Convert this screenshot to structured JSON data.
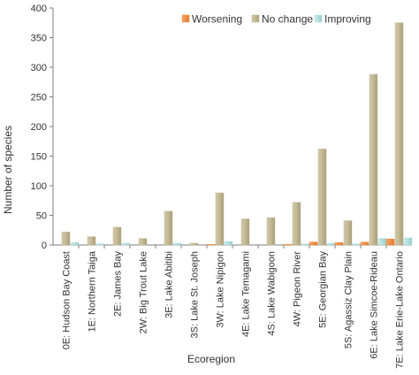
{
  "chart_data": {
    "type": "bar",
    "xlabel": "Ecoregion",
    "ylabel": "Number of species",
    "ylim": [
      0,
      400
    ],
    "yticks": [
      0,
      50,
      100,
      150,
      200,
      250,
      300,
      350,
      400
    ],
    "grid": false,
    "legend_position": "top-right",
    "categories": [
      "0E: Hudson Bay Coast",
      "1E: Northern Taiga",
      "2E: James Bay",
      "2W: Big Trout Lake",
      "3E: Lake Abitibi",
      "3S: Lake St. Joseph",
      "3W: Lake Nipigon",
      "4E: Lake Temagami",
      "4S: Lake Wabigoon",
      "4W: Pigeon River",
      "5E: Georgian Bay",
      "5S: Agassiz Clay Plain",
      "6E: Lake Simcoe-Rideau",
      "7E: Lake Erie-Lake Ontario"
    ],
    "series": [
      {
        "name": "Worsening",
        "color": "#f08a3c",
        "values": [
          0,
          0,
          0,
          0,
          0,
          0,
          1,
          0,
          0,
          1,
          5,
          4,
          5,
          10
        ]
      },
      {
        "name": "No change",
        "color": "#c2b894",
        "values": [
          22,
          14,
          30,
          11,
          57,
          3,
          88,
          44,
          46,
          72,
          162,
          41,
          288,
          375
        ]
      },
      {
        "name": "Improving",
        "color": "#b3e0df",
        "values": [
          4,
          2,
          3,
          0,
          3,
          0,
          6,
          0,
          0,
          2,
          3,
          2,
          11,
          12
        ]
      }
    ]
  }
}
